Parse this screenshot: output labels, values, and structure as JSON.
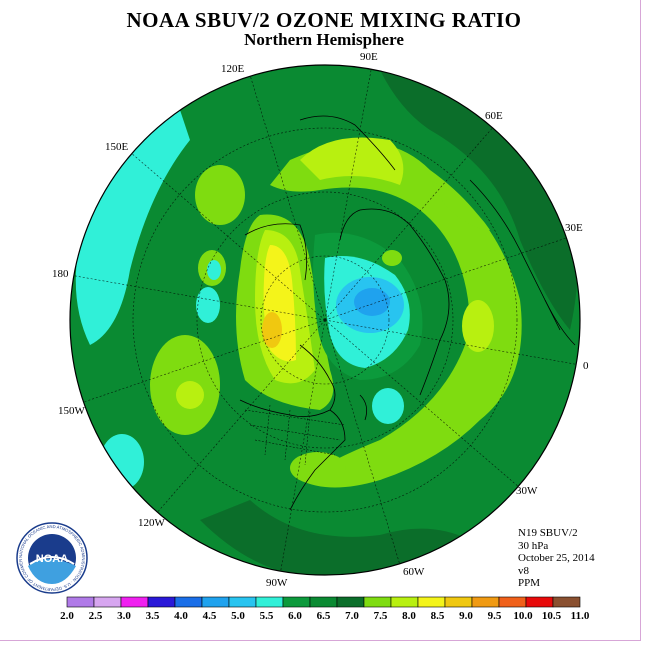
{
  "title": "NOAA SBUV/2 OZONE MIXING RATIO",
  "subtitle": "Northern Hemisphere",
  "longitude_labels": [
    "90E",
    "60E",
    "30E",
    "0",
    "30W",
    "60W",
    "90W",
    "120W",
    "150W",
    "180",
    "150E",
    "120E"
  ],
  "info": {
    "instrument": "N19 SBUV/2",
    "level": "30 hPa",
    "date": "October 25, 2014",
    "version": "v8",
    "units": "PPM"
  },
  "logo": {
    "text": "NOAA",
    "ring_text": "NATIONAL OCEANIC AND ATMOSPHERIC ADMINISTRATION · U.S. DEPARTMENT OF COMMERCE ·"
  },
  "colorbar": {
    "ticks": [
      "2.0",
      "2.5",
      "3.0",
      "3.5",
      "4.0",
      "4.5",
      "5.0",
      "5.5",
      "6.0",
      "6.5",
      "7.0",
      "7.5",
      "8.0",
      "8.5",
      "9.0",
      "9.5",
      "10.0",
      "10.5",
      "11.0"
    ],
    "colors": [
      "#b07ae8",
      "#d7a6f0",
      "#f020f0",
      "#2a18d8",
      "#1a6ee8",
      "#1fa2ee",
      "#28c4f0",
      "#30f0d8",
      "#0c9a3c",
      "#0a8a32",
      "#0b6e2a",
      "#7fdc10",
      "#b8f010",
      "#f4f41a",
      "#f0c810",
      "#f09a12",
      "#f0601a",
      "#e80a0a",
      "#8a5030"
    ]
  },
  "colors": {
    "ocean_base": "#0a8a32",
    "frame": "#d7a6d7"
  }
}
